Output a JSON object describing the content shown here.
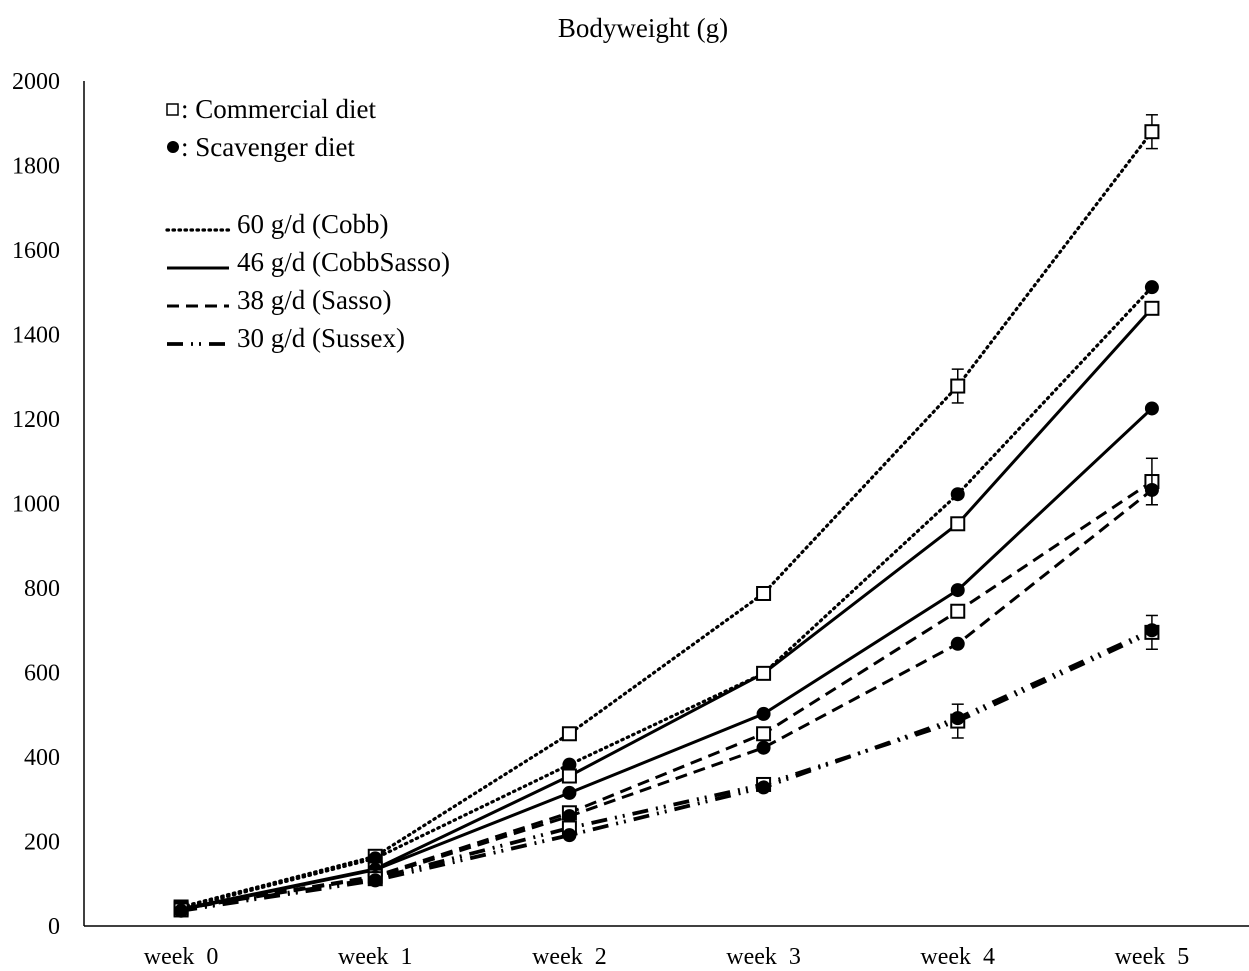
{
  "chart_data": {
    "type": "line",
    "title": "Bodyweight (g)",
    "xlabel": "",
    "ylabel": "",
    "categories": [
      "week  0",
      "week  1",
      "week  2",
      "week  3",
      "week  4",
      "week  5"
    ],
    "ylim": [
      0,
      2000
    ],
    "yticks": [
      0,
      200,
      400,
      600,
      800,
      1000,
      1200,
      1400,
      1600,
      1800,
      2000
    ],
    "grid": false,
    "legend_position": "top-left",
    "legend": {
      "markers": [
        {
          "symbol": "□",
          "label": ": Commercial diet"
        },
        {
          "symbol": "●",
          "label": ": Scavenger diet"
        }
      ],
      "lines": [
        {
          "sample": "dotted",
          "label": "60 g/d (Cobb)"
        },
        {
          "sample": "solid",
          "label": "46 g/d (CobbSasso)"
        },
        {
          "sample": "dashed",
          "label": "38 g/d (Sasso)"
        },
        {
          "sample": "dashdot",
          "label": "30 g/d (Sussex)"
        }
      ]
    },
    "series": [
      {
        "line": "dotted",
        "marker": "square",
        "values": [
          45,
          165,
          455,
          787,
          1278,
          1880
        ],
        "errors": [
          0,
          0,
          0,
          0,
          40,
          40
        ]
      },
      {
        "line": "dotted",
        "marker": "circle",
        "values": [
          42,
          160,
          382,
          598,
          1022,
          1512
        ],
        "errors": [
          0,
          0,
          0,
          0,
          0,
          0
        ]
      },
      {
        "line": "solid",
        "marker": "square",
        "values": [
          40,
          135,
          355,
          598,
          952,
          1462
        ],
        "errors": [
          0,
          0,
          0,
          0,
          0,
          0
        ]
      },
      {
        "line": "solid",
        "marker": "circle",
        "values": [
          38,
          133,
          315,
          502,
          795,
          1225
        ],
        "errors": [
          0,
          0,
          0,
          0,
          0,
          0
        ]
      },
      {
        "line": "dashed",
        "marker": "square",
        "values": [
          42,
          118,
          268,
          455,
          745,
          1052
        ],
        "errors": [
          0,
          0,
          0,
          0,
          0,
          55
        ]
      },
      {
        "line": "dashed",
        "marker": "circle",
        "values": [
          40,
          115,
          260,
          422,
          668,
          1032
        ],
        "errors": [
          0,
          0,
          0,
          0,
          0,
          35
        ]
      },
      {
        "line": "dashdot",
        "marker": "square",
        "values": [
          38,
          112,
          232,
          335,
          485,
          695
        ],
        "errors": [
          0,
          0,
          0,
          10,
          40,
          40
        ]
      },
      {
        "line": "dashdot",
        "marker": "circle",
        "values": [
          36,
          108,
          215,
          328,
          492,
          700
        ],
        "errors": [
          0,
          0,
          0,
          0,
          0,
          0
        ]
      }
    ]
  }
}
